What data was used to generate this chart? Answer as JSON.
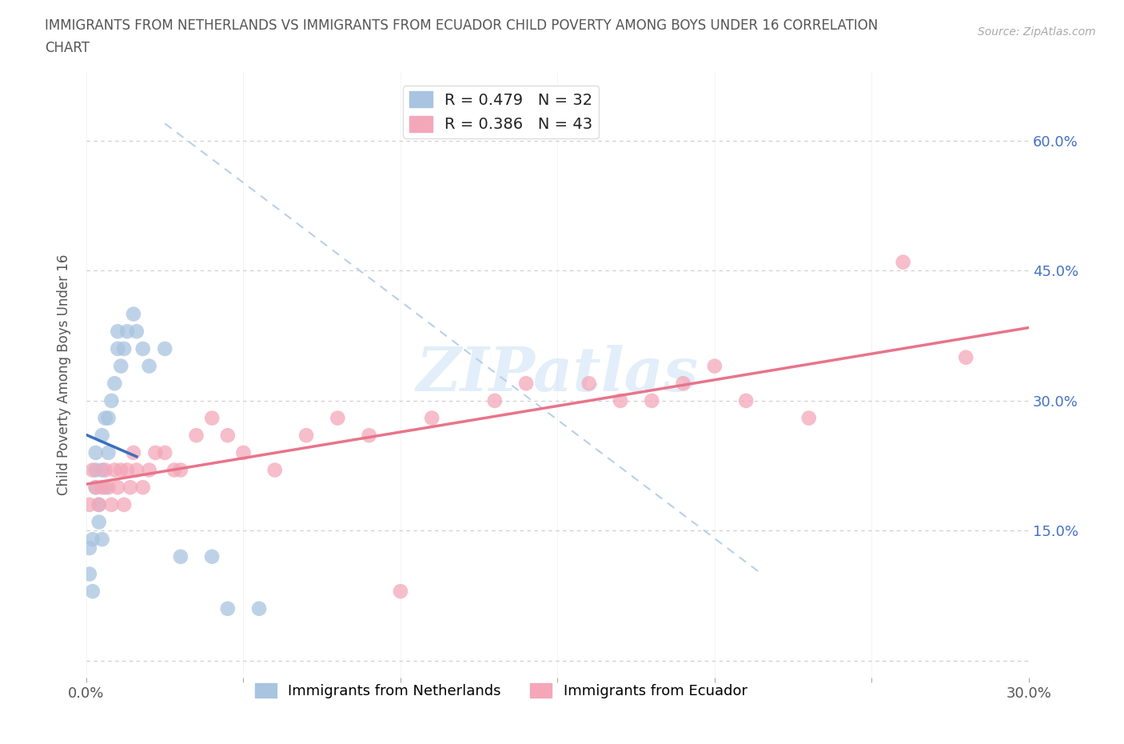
{
  "title_line1": "IMMIGRANTS FROM NETHERLANDS VS IMMIGRANTS FROM ECUADOR CHILD POVERTY AMONG BOYS UNDER 16 CORRELATION",
  "title_line2": "CHART",
  "source": "Source: ZipAtlas.com",
  "ylabel": "Child Poverty Among Boys Under 16",
  "xlim": [
    0.0,
    0.3
  ],
  "ylim": [
    -0.02,
    0.68
  ],
  "xticks": [
    0.0,
    0.05,
    0.1,
    0.15,
    0.2,
    0.25,
    0.3
  ],
  "yticks": [
    0.0,
    0.15,
    0.3,
    0.45,
    0.6
  ],
  "watermark": "ZIPatlas",
  "netherlands_color": "#a8c4e0",
  "ecuador_color": "#f4a7b9",
  "netherlands_line_color": "#3a6fbf",
  "ecuador_line_color": "#e8748a",
  "diagonal_color": "#b8d0e8",
  "R_netherlands": 0.479,
  "N_netherlands": 32,
  "R_ecuador": 0.386,
  "N_ecuador": 43,
  "netherlands_x": [
    0.001,
    0.001,
    0.002,
    0.002,
    0.003,
    0.003,
    0.003,
    0.004,
    0.004,
    0.005,
    0.005,
    0.005,
    0.006,
    0.006,
    0.007,
    0.007,
    0.008,
    0.009,
    0.01,
    0.01,
    0.011,
    0.012,
    0.013,
    0.015,
    0.016,
    0.018,
    0.02,
    0.025,
    0.03,
    0.04,
    0.045,
    0.055
  ],
  "netherlands_y": [
    0.13,
    0.1,
    0.08,
    0.14,
    0.2,
    0.22,
    0.24,
    0.16,
    0.18,
    0.14,
    0.22,
    0.26,
    0.2,
    0.28,
    0.24,
    0.28,
    0.3,
    0.32,
    0.36,
    0.38,
    0.34,
    0.36,
    0.38,
    0.4,
    0.38,
    0.36,
    0.34,
    0.36,
    0.12,
    0.12,
    0.06,
    0.06
  ],
  "ecuador_x": [
    0.001,
    0.002,
    0.003,
    0.004,
    0.005,
    0.006,
    0.007,
    0.008,
    0.009,
    0.01,
    0.011,
    0.012,
    0.013,
    0.014,
    0.015,
    0.016,
    0.018,
    0.02,
    0.022,
    0.025,
    0.028,
    0.03,
    0.035,
    0.04,
    0.045,
    0.05,
    0.06,
    0.07,
    0.08,
    0.09,
    0.1,
    0.11,
    0.13,
    0.14,
    0.16,
    0.17,
    0.18,
    0.19,
    0.2,
    0.21,
    0.23,
    0.26,
    0.28
  ],
  "ecuador_y": [
    0.18,
    0.22,
    0.2,
    0.18,
    0.2,
    0.22,
    0.2,
    0.18,
    0.22,
    0.2,
    0.22,
    0.18,
    0.22,
    0.2,
    0.24,
    0.22,
    0.2,
    0.22,
    0.24,
    0.24,
    0.22,
    0.22,
    0.26,
    0.28,
    0.26,
    0.24,
    0.22,
    0.26,
    0.28,
    0.26,
    0.08,
    0.28,
    0.3,
    0.32,
    0.32,
    0.3,
    0.3,
    0.32,
    0.34,
    0.3,
    0.28,
    0.46,
    0.35
  ]
}
